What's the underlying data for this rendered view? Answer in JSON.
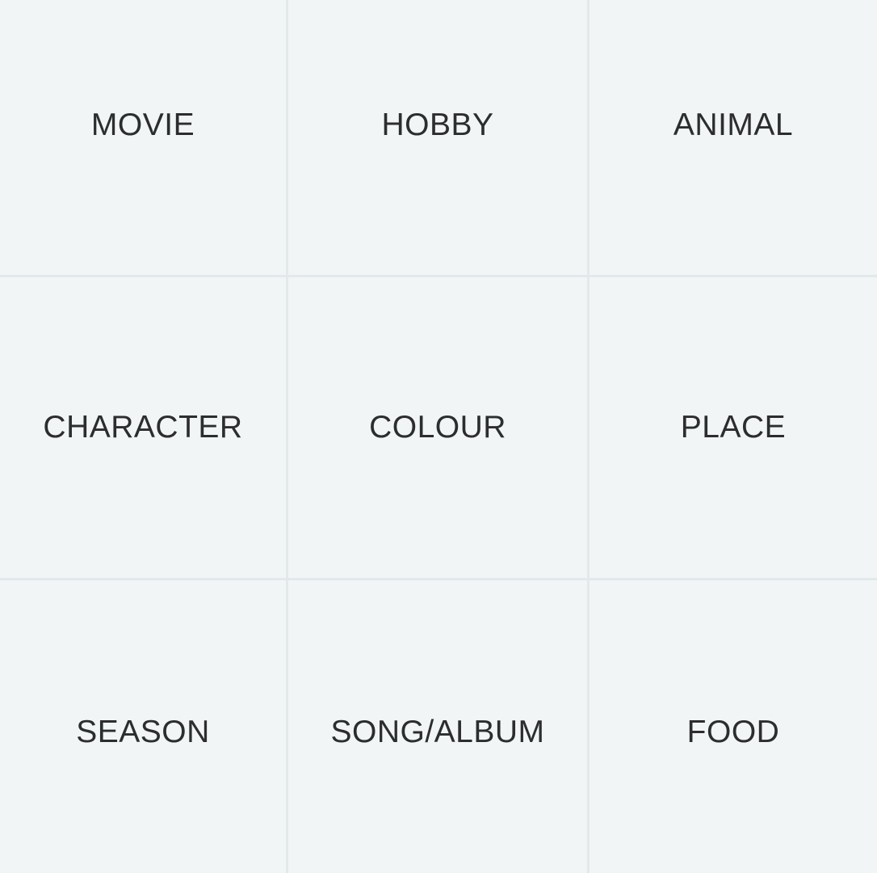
{
  "grid": {
    "cells": [
      "MOVIE",
      "HOBBY",
      "ANIMAL",
      "CHARACTER",
      "COLOUR",
      "PLACE",
      "SEASON",
      "SONG/ALBUM",
      "FOOD"
    ]
  },
  "colors": {
    "background": "#f1f5f6",
    "divider": "#e3e9eb",
    "text": "#2b2d2e"
  }
}
